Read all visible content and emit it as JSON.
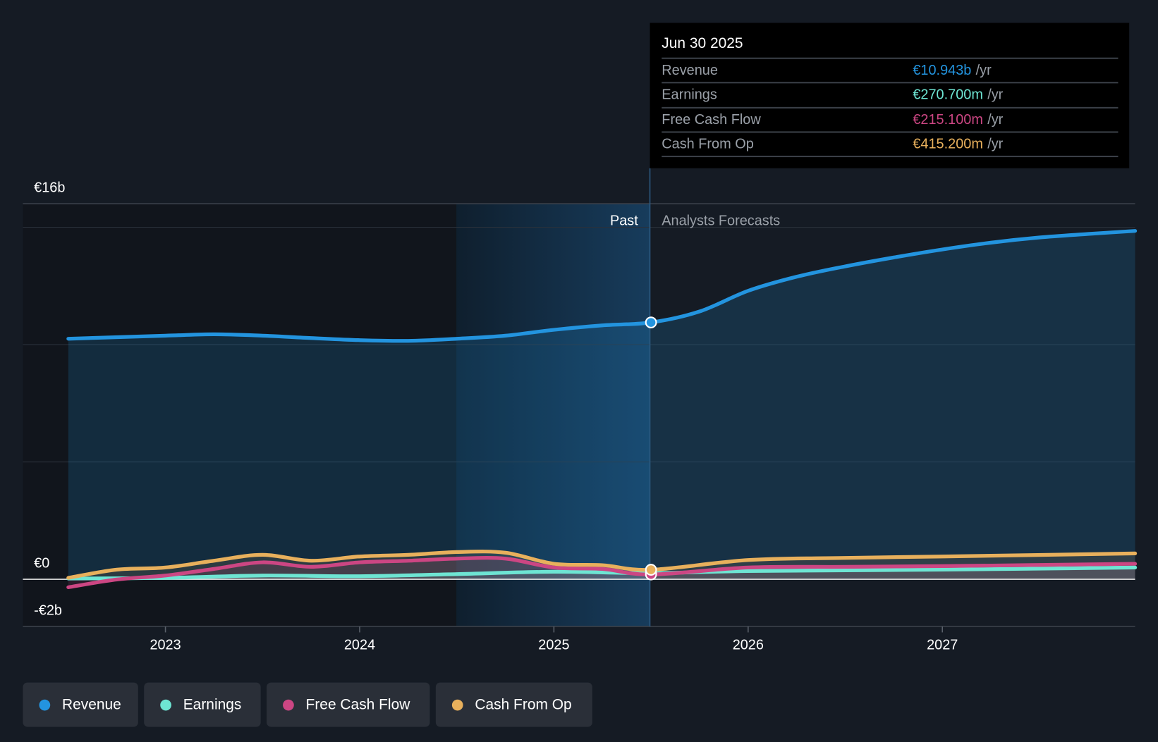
{
  "tooltip": {
    "date": "Jun 30 2025",
    "unit": "/yr",
    "rows": [
      {
        "label": "Revenue",
        "value": "€10.943b",
        "color": "#2394df"
      },
      {
        "label": "Earnings",
        "value": "€270.700m",
        "color": "#6ee5d3"
      },
      {
        "label": "Free Cash Flow",
        "value": "€215.100m",
        "color": "#cc4683"
      },
      {
        "label": "Cash From Op",
        "value": "€415.200m",
        "color": "#e8b05c"
      }
    ]
  },
  "chart_data": {
    "type": "line",
    "title": "",
    "xlabel": "",
    "ylabel": "",
    "x_ticks": [
      "2023",
      "2024",
      "2025",
      "2026",
      "2027"
    ],
    "y_tick_labels": [
      "€16b",
      "€0",
      "-€2b"
    ],
    "ylim": [
      -2,
      16
    ],
    "xlim": [
      2022.3,
      2028
    ],
    "units": "EUR billions",
    "past_label": "Past",
    "forecast_label": "Analysts Forecasts",
    "past_divider_x": 2025.5,
    "highlight_start_x": 2024.5,
    "series": [
      {
        "name": "Revenue",
        "color": "#2394df",
        "x": [
          2022.5,
          2023.0,
          2023.25,
          2023.5,
          2023.75,
          2024.0,
          2024.25,
          2024.5,
          2024.75,
          2025.0,
          2025.25,
          2025.5,
          2025.75,
          2026.0,
          2026.25,
          2026.5,
          2026.75,
          2027.0,
          2027.25,
          2027.5,
          2027.75,
          2028.0
        ],
        "values": [
          10.25,
          10.38,
          10.44,
          10.38,
          10.28,
          10.19,
          10.16,
          10.25,
          10.38,
          10.63,
          10.82,
          10.943,
          11.41,
          12.29,
          12.89,
          13.33,
          13.71,
          14.05,
          14.34,
          14.56,
          14.71,
          14.84
        ]
      },
      {
        "name": "Earnings",
        "color": "#6ee5d3",
        "x": [
          2022.5,
          2023.0,
          2023.5,
          2024.0,
          2024.5,
          2025.0,
          2025.5,
          2026.0,
          2027.0,
          2028.0
        ],
        "values": [
          0.04,
          0.07,
          0.17,
          0.14,
          0.23,
          0.33,
          0.2707,
          0.36,
          0.42,
          0.51
        ]
      },
      {
        "name": "Free Cash Flow",
        "color": "#cc4683",
        "x": [
          2022.5,
          2022.75,
          2023.0,
          2023.25,
          2023.5,
          2023.75,
          2024.0,
          2024.25,
          2024.5,
          2024.75,
          2025.0,
          2025.25,
          2025.5,
          2026.0,
          2026.5,
          2027.0,
          2028.0
        ],
        "values": [
          -0.33,
          0.0,
          0.17,
          0.45,
          0.73,
          0.54,
          0.73,
          0.8,
          0.89,
          0.89,
          0.51,
          0.45,
          0.2151,
          0.51,
          0.54,
          0.57,
          0.67
        ]
      },
      {
        "name": "Cash From Op",
        "color": "#e8b05c",
        "x": [
          2022.5,
          2022.75,
          2023.0,
          2023.25,
          2023.5,
          2023.75,
          2024.0,
          2024.25,
          2024.5,
          2024.75,
          2025.0,
          2025.25,
          2025.5,
          2026.0,
          2026.5,
          2027.0,
          2028.0
        ],
        "values": [
          0.07,
          0.42,
          0.51,
          0.8,
          1.05,
          0.8,
          0.98,
          1.05,
          1.17,
          1.14,
          0.67,
          0.61,
          0.4152,
          0.83,
          0.92,
          0.98,
          1.11
        ]
      }
    ]
  }
}
